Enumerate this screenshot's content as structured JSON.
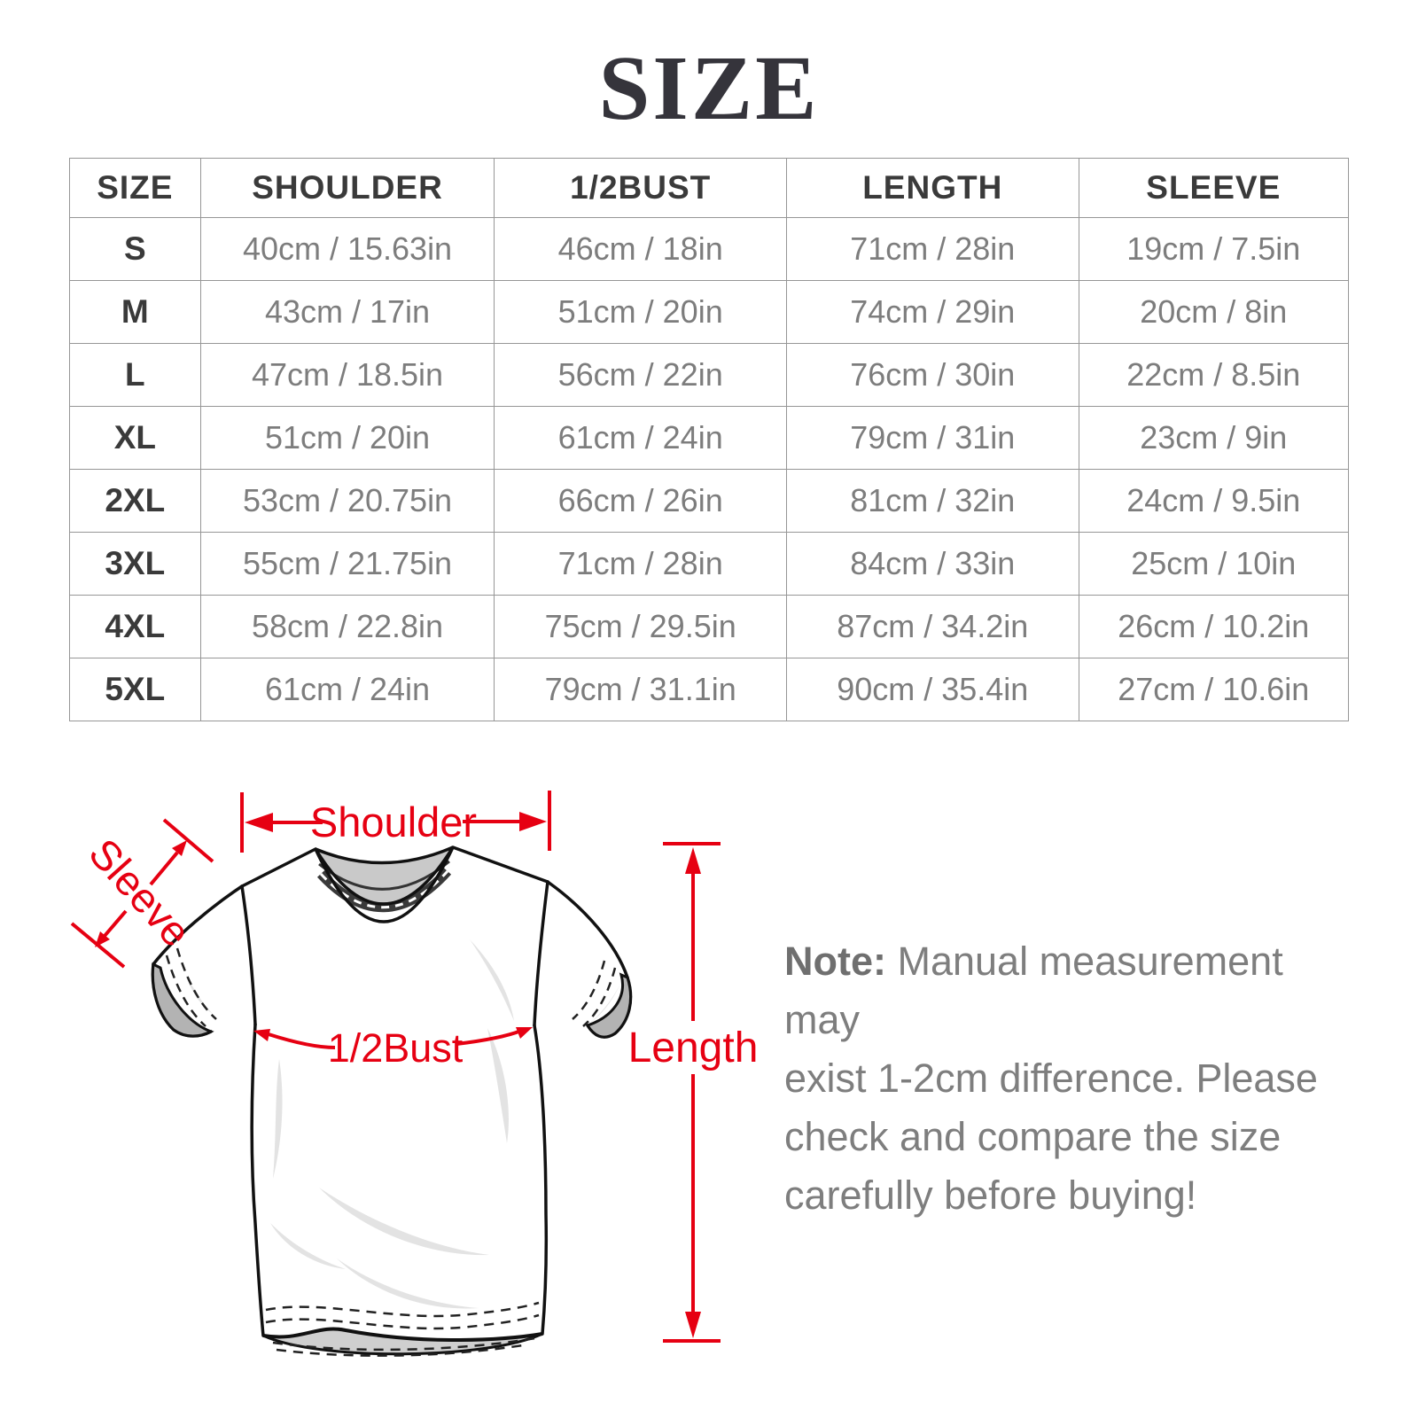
{
  "title": "SIZE",
  "colors": {
    "accent_red": "#e60012",
    "header_text": "#3a3a3a",
    "cell_text": "#7d7d7d",
    "table_border": "#969696",
    "note_text": "#7e7e7e",
    "shirt_outline": "#111111",
    "collar_grey": "#c9c9c9",
    "wrinkle_grey": "#e3e3e3"
  },
  "table": {
    "columns": [
      "SIZE",
      "SHOULDER",
      "1/2BUST",
      "LENGTH",
      "SLEEVE"
    ],
    "rows": [
      [
        "S",
        "40cm / 15.63in",
        "46cm / 18in",
        "71cm / 28in",
        "19cm / 7.5in"
      ],
      [
        "M",
        "43cm / 17in",
        "51cm / 20in",
        "74cm / 29in",
        "20cm / 8in"
      ],
      [
        "L",
        "47cm / 18.5in",
        "56cm / 22in",
        "76cm / 30in",
        "22cm / 8.5in"
      ],
      [
        "XL",
        "51cm / 20in",
        "61cm / 24in",
        "79cm / 31in",
        "23cm / 9in"
      ],
      [
        "2XL",
        "53cm / 20.75in",
        "66cm / 26in",
        "81cm / 32in",
        "24cm / 9.5in"
      ],
      [
        "3XL",
        "55cm / 21.75in",
        "71cm / 28in",
        "84cm / 33in",
        "25cm / 10in"
      ],
      [
        "4XL",
        "58cm / 22.8in",
        "75cm / 29.5in",
        "87cm / 34.2in",
        "26cm / 10.2in"
      ],
      [
        "5XL",
        "61cm / 24in",
        "79cm / 31.1in",
        "90cm / 35.4in",
        "27cm / 10.6in"
      ]
    ]
  },
  "diagram": {
    "labels": {
      "shoulder": "Shoulder",
      "sleeve": "Sleeve",
      "bust": "1/2Bust",
      "length": "Length"
    }
  },
  "note": {
    "label": "Note:",
    "lines": [
      "Manual measurement may",
      "exist 1-2cm difference. Please",
      "check and compare the size",
      "carefully before buying!"
    ]
  }
}
